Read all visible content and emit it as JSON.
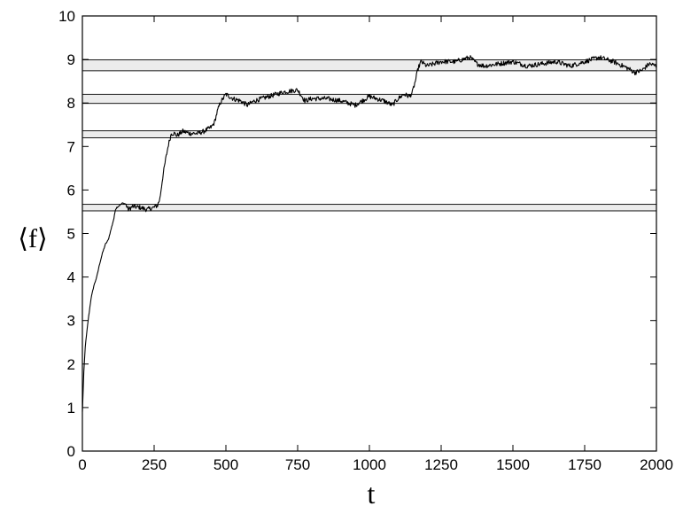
{
  "chart_data": {
    "type": "line",
    "title": "",
    "xlabel": "t",
    "ylabel": "⟨f⟩",
    "xlim": [
      0,
      2000
    ],
    "ylim": [
      0,
      10
    ],
    "xticks": [
      0,
      250,
      500,
      750,
      1000,
      1250,
      1500,
      1750,
      2000
    ],
    "yticks": [
      0,
      1,
      2,
      3,
      4,
      5,
      6,
      7,
      8,
      9,
      10
    ],
    "grid": false,
    "legend": "none",
    "bands": [
      {
        "y0": 5.52,
        "y1": 5.67
      },
      {
        "y0": 7.2,
        "y1": 7.36
      },
      {
        "y0": 7.99,
        "y1": 8.2
      },
      {
        "y0": 8.74,
        "y1": 8.99
      }
    ],
    "series": [
      {
        "x": [
          0,
          5,
          10,
          20,
          30,
          40,
          50,
          60,
          70,
          80,
          90,
          100,
          110,
          115,
          120,
          130,
          140,
          150,
          160,
          175,
          200,
          225,
          250,
          262,
          270,
          280,
          290,
          300,
          310,
          320,
          330,
          350,
          375,
          400,
          425,
          450,
          460,
          470,
          480,
          490,
          500,
          525,
          550,
          575,
          600,
          625,
          650,
          700,
          750,
          775,
          800,
          850,
          900,
          950,
          1000,
          1050,
          1080,
          1100,
          1120,
          1140,
          1150,
          1160,
          1170,
          1180,
          1200,
          1250,
          1300,
          1350,
          1375,
          1400,
          1450,
          1500,
          1550,
          1600,
          1650,
          1700,
          1750,
          1800,
          1850,
          1900,
          1925,
          1950,
          1975,
          2000
        ],
        "y": [
          0.9,
          1.8,
          2.4,
          3.0,
          3.5,
          3.8,
          4.0,
          4.3,
          4.55,
          4.75,
          4.85,
          5.1,
          5.35,
          5.55,
          5.6,
          5.65,
          5.7,
          5.68,
          5.55,
          5.62,
          5.6,
          5.55,
          5.6,
          5.65,
          5.8,
          6.3,
          6.7,
          7.05,
          7.3,
          7.3,
          7.25,
          7.35,
          7.3,
          7.3,
          7.35,
          7.45,
          7.55,
          7.8,
          8.0,
          8.1,
          8.2,
          8.1,
          8.05,
          7.95,
          8.05,
          8.1,
          8.15,
          8.25,
          8.3,
          8.05,
          8.1,
          8.1,
          8.05,
          7.95,
          8.15,
          8.05,
          7.95,
          8.1,
          8.2,
          8.15,
          8.25,
          8.5,
          8.8,
          8.95,
          8.85,
          8.95,
          8.95,
          9.05,
          8.9,
          8.85,
          8.9,
          8.95,
          8.85,
          8.9,
          8.95,
          8.85,
          8.95,
          9.05,
          8.95,
          8.8,
          8.7,
          8.75,
          8.9,
          8.85
        ]
      }
    ]
  }
}
